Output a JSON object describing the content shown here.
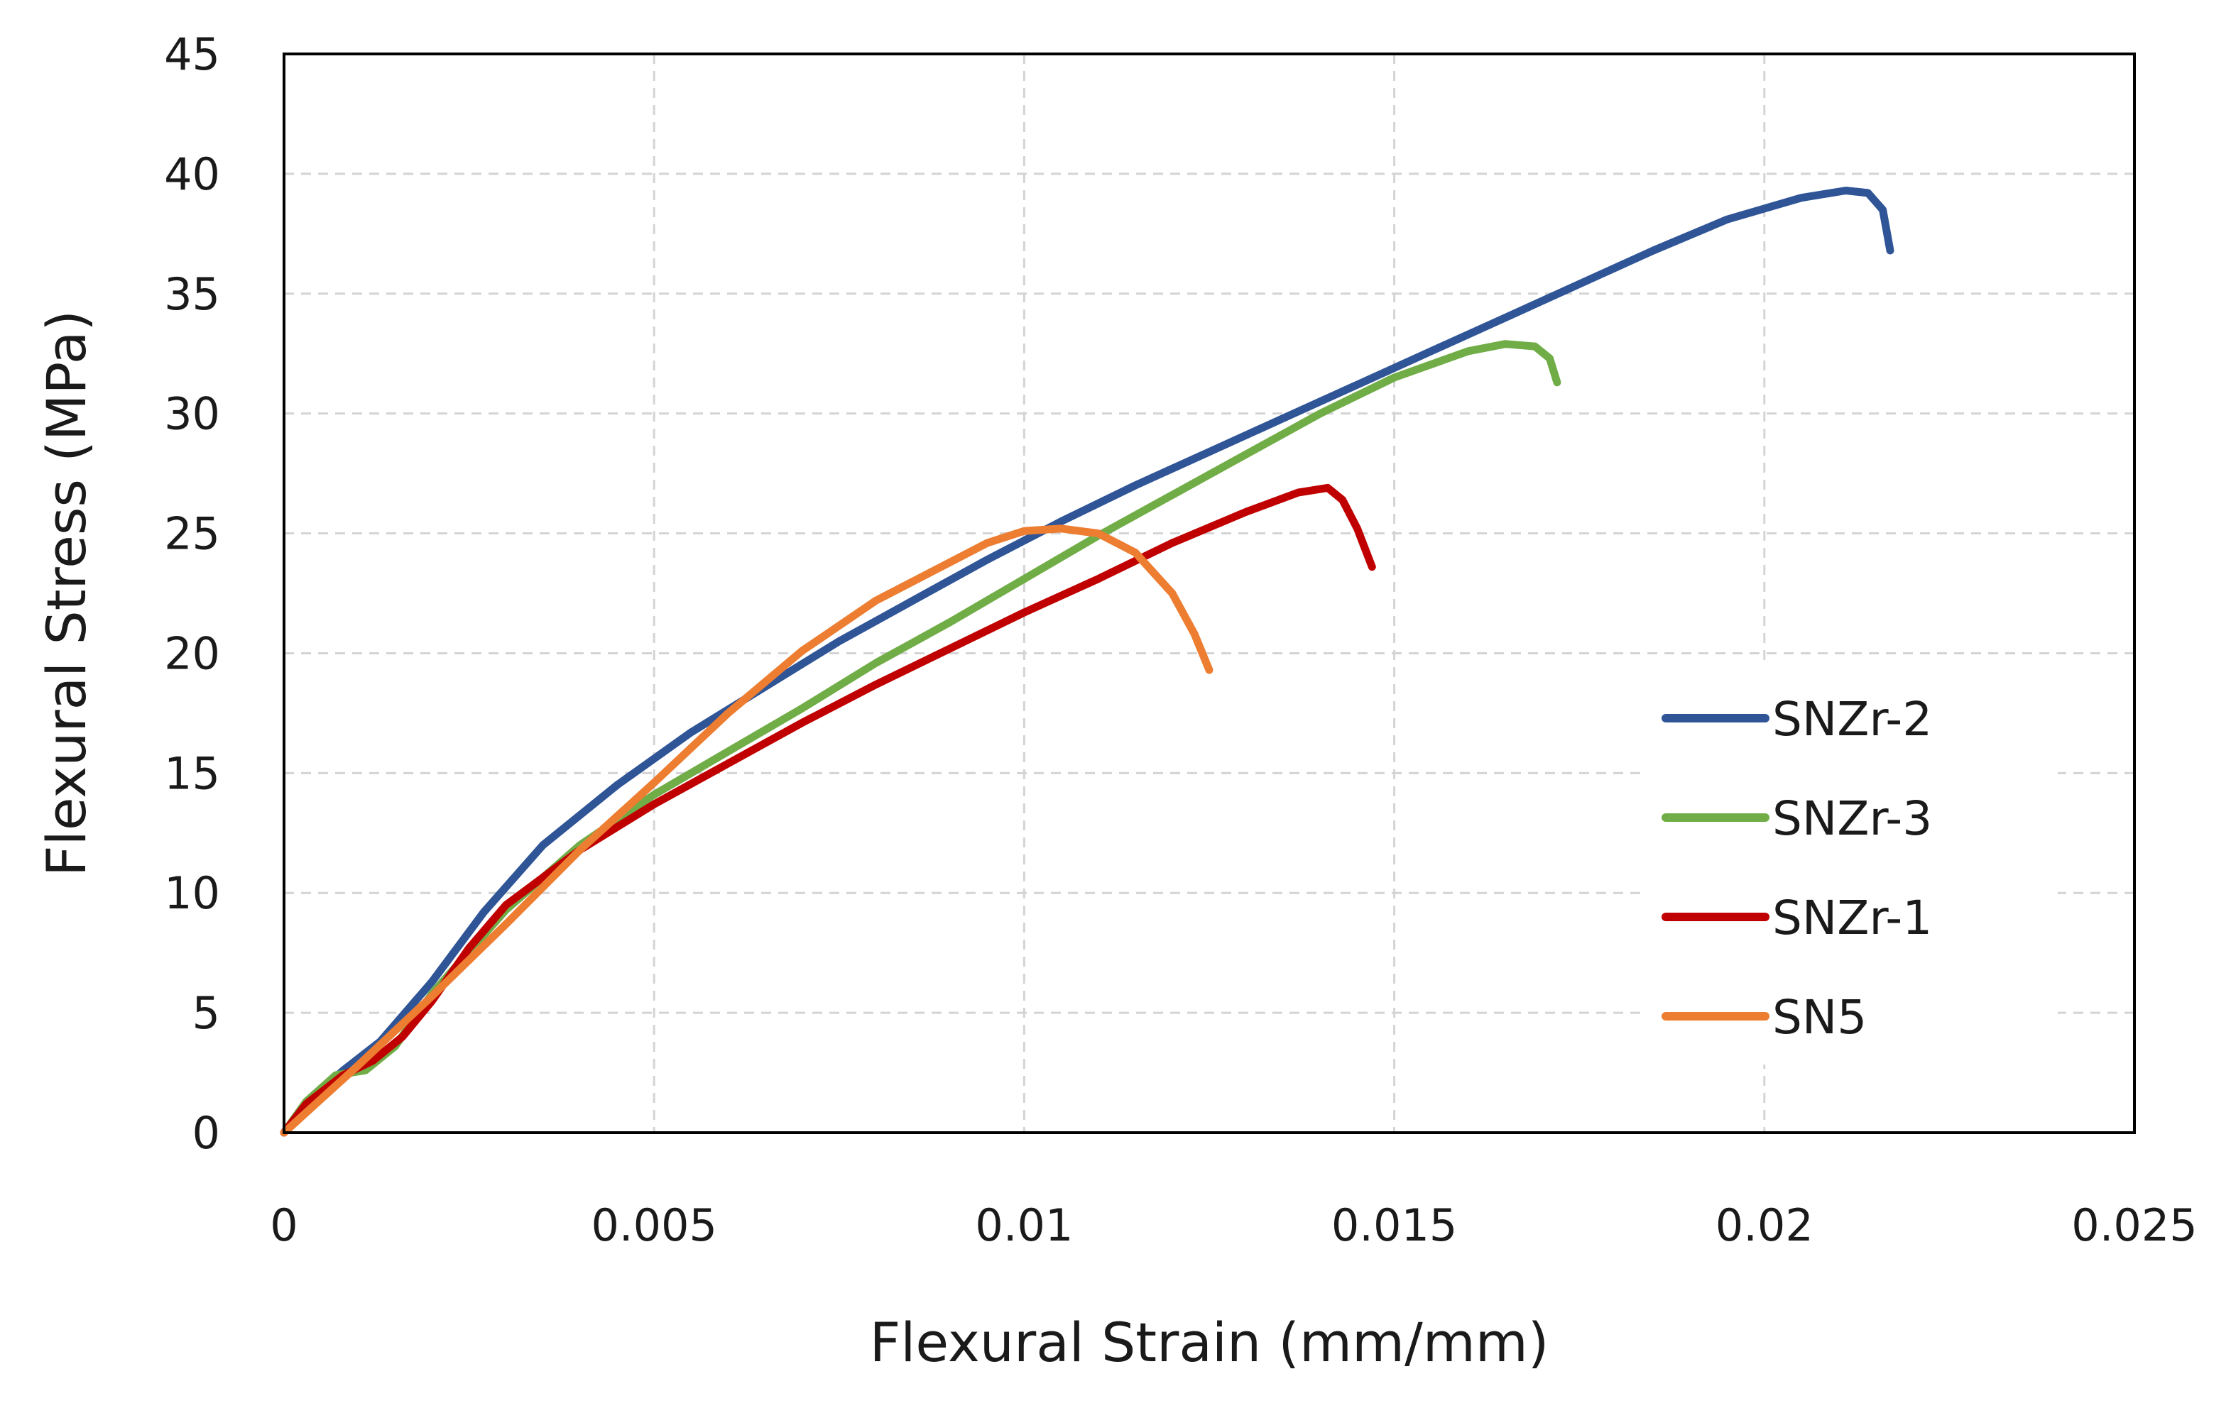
{
  "chart_data": {
    "type": "line",
    "title": "",
    "xlabel": "Flexural Strain  (mm/mm)",
    "ylabel": "Flexural Stress (MPa)",
    "xlim": [
      0,
      0.025
    ],
    "ylim": [
      0,
      45
    ],
    "xticks": [
      0,
      0.005,
      0.01,
      0.015,
      0.02,
      0.025
    ],
    "xtick_labels": [
      "0",
      "0.005",
      "0.01",
      "0.015",
      "0.02",
      "0.025"
    ],
    "yticks": [
      0,
      5,
      10,
      15,
      20,
      25,
      30,
      35,
      40,
      45
    ],
    "ytick_labels": [
      "0",
      "5",
      "10",
      "15",
      "20",
      "25",
      "30",
      "35",
      "40",
      "45"
    ],
    "grid": true,
    "legend_position": "right",
    "series": [
      {
        "name": "SNZr-2",
        "color": "#2f5597",
        "x": [
          0,
          0.0003,
          0.0008,
          0.0013,
          0.002,
          0.0027,
          0.0035,
          0.0045,
          0.0055,
          0.0065,
          0.0075,
          0.0085,
          0.0095,
          0.0105,
          0.0115,
          0.0125,
          0.0135,
          0.0145,
          0.0155,
          0.0165,
          0.0175,
          0.0185,
          0.0195,
          0.0205,
          0.0211,
          0.0214,
          0.0216,
          0.0217
        ],
        "y": [
          0,
          1.2,
          2.6,
          3.8,
          6.3,
          9.2,
          12.0,
          14.5,
          16.7,
          18.6,
          20.5,
          22.2,
          23.9,
          25.5,
          27.0,
          28.4,
          29.8,
          31.2,
          32.6,
          34.0,
          35.4,
          36.8,
          38.1,
          39.0,
          39.3,
          39.2,
          38.5,
          36.8
        ]
      },
      {
        "name": "SNZr-3",
        "color": "#70ad47",
        "x": [
          0,
          0.0003,
          0.0007,
          0.0011,
          0.0015,
          0.002,
          0.003,
          0.004,
          0.005,
          0.006,
          0.007,
          0.008,
          0.009,
          0.01,
          0.011,
          0.012,
          0.013,
          0.014,
          0.015,
          0.016,
          0.0165,
          0.0169,
          0.0171,
          0.0172
        ],
        "y": [
          0,
          1.3,
          2.4,
          2.6,
          3.6,
          5.8,
          9.3,
          12.0,
          14.1,
          15.9,
          17.7,
          19.6,
          21.3,
          23.1,
          24.9,
          26.6,
          28.3,
          30.0,
          31.5,
          32.6,
          32.9,
          32.8,
          32.3,
          31.3
        ]
      },
      {
        "name": "SNZr-1",
        "color": "#c00000",
        "x": [
          0,
          0.0003,
          0.0008,
          0.0012,
          0.0016,
          0.002,
          0.0025,
          0.003,
          0.004,
          0.005,
          0.006,
          0.007,
          0.008,
          0.009,
          0.01,
          0.011,
          0.012,
          0.013,
          0.0137,
          0.0141,
          0.0143,
          0.0145,
          0.0147
        ],
        "y": [
          0,
          1.2,
          2.4,
          3.0,
          4.0,
          5.5,
          7.7,
          9.5,
          11.8,
          13.7,
          15.4,
          17.1,
          18.7,
          20.2,
          21.7,
          23.1,
          24.6,
          25.9,
          26.7,
          26.9,
          26.4,
          25.2,
          23.6
        ]
      },
      {
        "name": "SN5",
        "color": "#ed7d31",
        "x": [
          0,
          0.0005,
          0.001,
          0.002,
          0.003,
          0.004,
          0.005,
          0.006,
          0.007,
          0.008,
          0.009,
          0.0095,
          0.01,
          0.0105,
          0.011,
          0.0115,
          0.012,
          0.0123,
          0.0125
        ],
        "y": [
          0,
          1.4,
          2.8,
          5.7,
          8.7,
          11.8,
          14.6,
          17.5,
          20.1,
          22.2,
          23.8,
          24.6,
          25.1,
          25.2,
          25.0,
          24.2,
          22.5,
          20.8,
          19.3
        ]
      }
    ]
  }
}
